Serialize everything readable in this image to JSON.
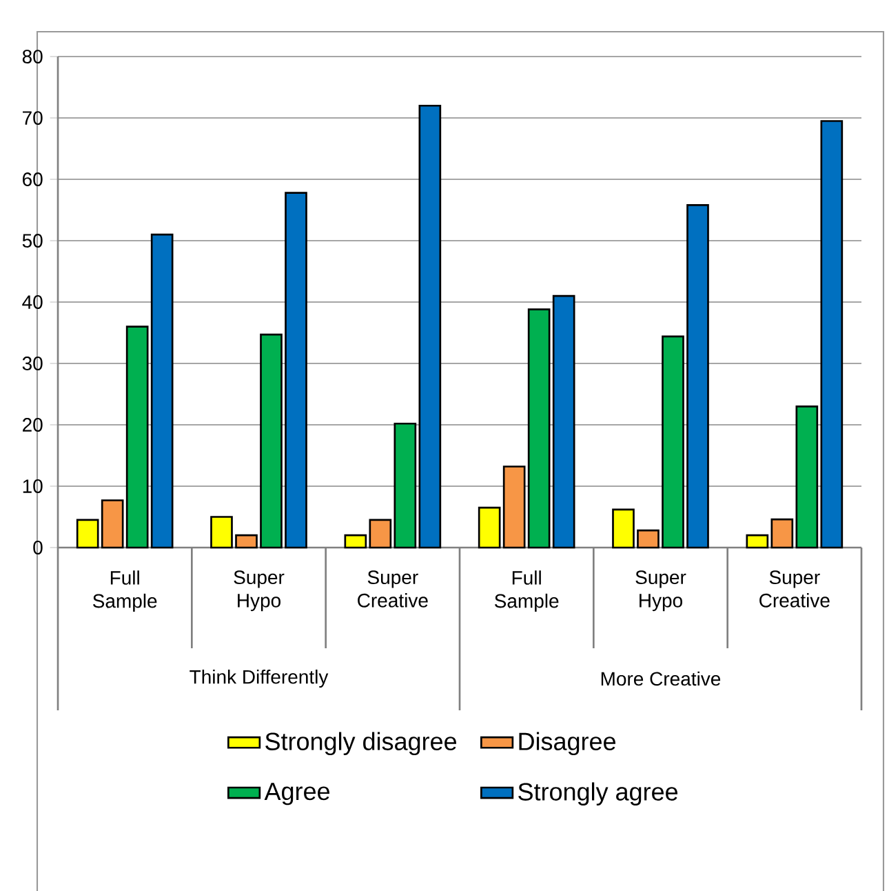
{
  "chart_data": {
    "type": "bar",
    "categories": [
      "Full Sample",
      "Super Hypo",
      "Super Creative",
      "Full Sample",
      "Super Hypo",
      "Super Creative"
    ],
    "annotations": [
      "Think Differently",
      "More Creative"
    ],
    "series": [
      {
        "name": "Strongly disagree",
        "color": "#ffff00",
        "values": [
          4.5,
          5,
          2,
          6.5,
          6.2,
          2
        ]
      },
      {
        "name": "Disagree",
        "color": "#f79646",
        "values": [
          7.7,
          2,
          4.5,
          13.2,
          2.8,
          4.6
        ]
      },
      {
        "name": "Agree",
        "color": "#00b050",
        "values": [
          36,
          34.7,
          20.2,
          38.8,
          34.4,
          23
        ]
      },
      {
        "name": "Strongly agree",
        "color": "#0070c0",
        "values": [
          51,
          57.8,
          72,
          41,
          55.8,
          69.5
        ]
      }
    ],
    "ylim": [
      0,
      80
    ],
    "yticks": [
      0,
      10,
      20,
      30,
      40,
      50,
      60,
      70,
      80
    ],
    "grid": "y",
    "legend": "bottom"
  }
}
